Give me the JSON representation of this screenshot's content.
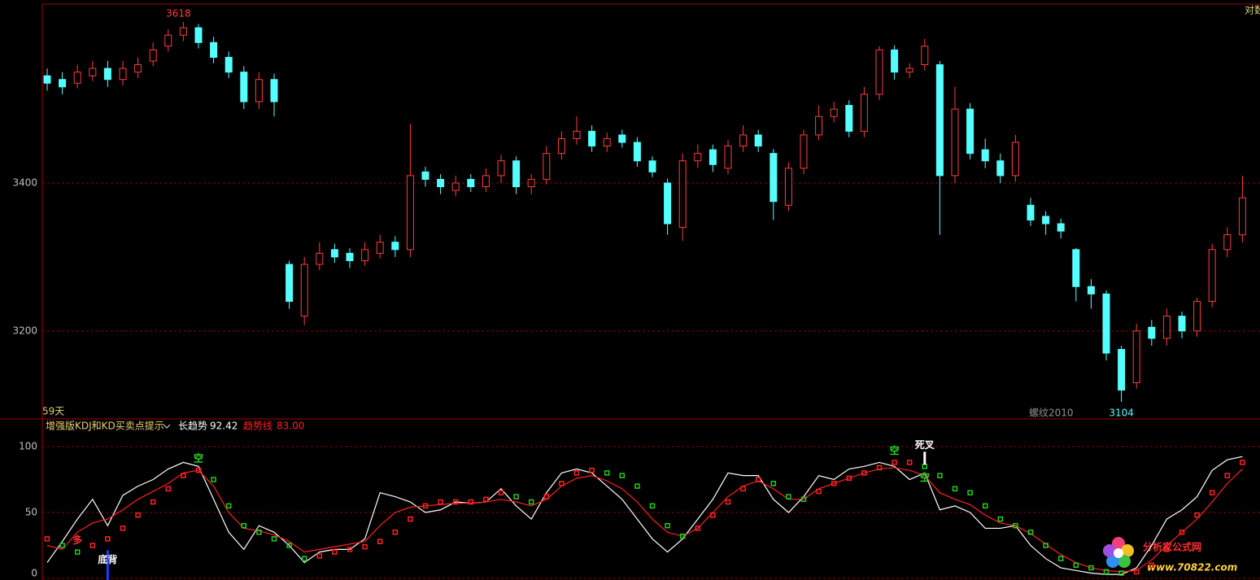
{
  "chart_data": [
    {
      "type": "candlestick",
      "symbol": "螺纹2010",
      "period_label": "59天",
      "scale_label": "对数",
      "open": [
        3545,
        3540,
        3535,
        3545,
        3555,
        3540,
        3550,
        3565,
        3585,
        3600,
        3610,
        3590,
        3570,
        3550,
        3510,
        3540,
        3290,
        3220,
        3290,
        3310,
        3305,
        3295,
        3305,
        3320,
        3310,
        3415,
        3405,
        3390,
        3405,
        3395,
        3410,
        3430,
        3395,
        3405,
        3440,
        3460,
        3470,
        3450,
        3465,
        3455,
        3430,
        3400,
        3340,
        3430,
        3445,
        3420,
        3450,
        3465,
        3440,
        3370,
        3420,
        3465,
        3490,
        3505,
        3470,
        3520,
        3580,
        3550,
        3560,
        3560,
        3410,
        3500,
        3445,
        3430,
        3410,
        3370,
        3355,
        3345,
        3310,
        3260,
        3250,
        3175,
        3130,
        3205,
        3190,
        3220,
        3200,
        3240,
        3310,
        3330
      ],
      "high": [
        3555,
        3550,
        3560,
        3565,
        3565,
        3565,
        3570,
        3590,
        3608,
        3618,
        3615,
        3598,
        3578,
        3558,
        3550,
        3548,
        3295,
        3300,
        3320,
        3318,
        3312,
        3320,
        3330,
        3328,
        3480,
        3422,
        3412,
        3410,
        3412,
        3420,
        3438,
        3436,
        3412,
        3450,
        3470,
        3490,
        3478,
        3468,
        3472,
        3462,
        3436,
        3406,
        3440,
        3452,
        3452,
        3458,
        3478,
        3472,
        3446,
        3428,
        3472,
        3505,
        3510,
        3512,
        3530,
        3585,
        3586,
        3562,
        3595,
        3565,
        3530,
        3508,
        3460,
        3440,
        3465,
        3380,
        3362,
        3352,
        3312,
        3270,
        3255,
        3180,
        3210,
        3215,
        3230,
        3226,
        3245,
        3318,
        3340,
        3410
      ],
      "low": [
        3525,
        3520,
        3528,
        3538,
        3530,
        3532,
        3542,
        3558,
        3578,
        3592,
        3582,
        3562,
        3542,
        3500,
        3500,
        3490,
        3230,
        3208,
        3282,
        3292,
        3285,
        3288,
        3298,
        3300,
        3300,
        3395,
        3385,
        3382,
        3388,
        3388,
        3400,
        3385,
        3385,
        3398,
        3432,
        3452,
        3442,
        3442,
        3448,
        3422,
        3408,
        3330,
        3322,
        3420,
        3415,
        3412,
        3442,
        3442,
        3350,
        3362,
        3412,
        3458,
        3482,
        3462,
        3462,
        3512,
        3540,
        3542,
        3552,
        3330,
        3400,
        3432,
        3420,
        3400,
        3402,
        3342,
        3330,
        3325,
        3240,
        3230,
        3160,
        3104,
        3122,
        3180,
        3180,
        3190,
        3192,
        3232,
        3300,
        3320
      ],
      "close": [
        3535,
        3530,
        3550,
        3555,
        3540,
        3555,
        3560,
        3580,
        3600,
        3610,
        3590,
        3570,
        3550,
        3510,
        3540,
        3510,
        3240,
        3290,
        3305,
        3300,
        3295,
        3310,
        3320,
        3310,
        3410,
        3405,
        3395,
        3400,
        3395,
        3410,
        3430,
        3395,
        3405,
        3440,
        3460,
        3470,
        3450,
        3460,
        3455,
        3430,
        3415,
        3345,
        3430,
        3440,
        3425,
        3450,
        3465,
        3450,
        3375,
        3420,
        3465,
        3490,
        3500,
        3470,
        3520,
        3580,
        3550,
        3555,
        3585,
        3410,
        3500,
        3440,
        3430,
        3410,
        3455,
        3350,
        3345,
        3335,
        3260,
        3250,
        3170,
        3120,
        3200,
        3190,
        3220,
        3200,
        3240,
        3310,
        3330,
        3380
      ],
      "up_color": "#ff3c3c",
      "down_color": "#54ffff",
      "ylim": [
        3081,
        3642
      ],
      "yticks": [
        3200,
        3400
      ],
      "grid": true
    },
    {
      "type": "line",
      "title": "增强版KDJ和KD买卖点提示",
      "series": [
        {
          "name": "长趋势",
          "color": "#ffffff",
          "last_value_label": "92.42",
          "values": [
            12,
            28,
            45,
            60,
            40,
            63,
            70,
            75,
            83,
            88,
            85,
            60,
            35,
            22,
            40,
            35,
            25,
            12,
            20,
            22,
            22,
            30,
            65,
            62,
            58,
            50,
            52,
            58,
            57,
            58,
            68,
            55,
            45,
            65,
            80,
            83,
            80,
            70,
            60,
            45,
            30,
            20,
            30,
            45,
            60,
            80,
            78,
            78,
            60,
            50,
            62,
            78,
            75,
            83,
            85,
            88,
            85,
            75,
            80,
            52,
            55,
            50,
            38,
            38,
            40,
            25,
            15,
            8,
            6,
            4,
            3,
            3,
            8,
            25,
            45,
            52,
            62,
            82,
            90,
            92.42
          ]
        },
        {
          "name": "趋势线",
          "color": "#ff2020",
          "last_value_label": "83.00",
          "values": [
            25,
            22,
            35,
            42,
            45,
            52,
            60,
            66,
            72,
            80,
            82,
            70,
            50,
            38,
            36,
            33,
            28,
            20,
            22,
            24,
            26,
            28,
            40,
            50,
            54,
            55,
            56,
            57,
            57,
            58,
            60,
            58,
            55,
            60,
            70,
            76,
            78,
            74,
            68,
            58,
            45,
            35,
            32,
            38,
            50,
            62,
            70,
            74,
            68,
            60,
            60,
            68,
            72,
            76,
            80,
            83,
            84,
            82,
            78,
            65,
            60,
            56,
            48,
            42,
            40,
            34,
            26,
            18,
            12,
            8,
            6,
            5,
            6,
            14,
            25,
            35,
            45,
            58,
            72,
            83
          ]
        },
        {
          "style": "step",
          "up_color": "#ff2020",
          "down_color": "#22cc22",
          "values": [
            30,
            25,
            20,
            25,
            30,
            38,
            48,
            58,
            68,
            78,
            82,
            75,
            55,
            40,
            35,
            30,
            25,
            15,
            17,
            20,
            22,
            24,
            28,
            35,
            45,
            55,
            58,
            58,
            58,
            60,
            65,
            62,
            58,
            62,
            72,
            80,
            82,
            80,
            78,
            70,
            55,
            40,
            32,
            38,
            48,
            58,
            68,
            75,
            72,
            62,
            60,
            66,
            72,
            76,
            80,
            84,
            88,
            88,
            85,
            78,
            68,
            65,
            55,
            45,
            40,
            35,
            25,
            15,
            10,
            8,
            5,
            4,
            5,
            10,
            22,
            35,
            48,
            65,
            78,
            88
          ]
        }
      ],
      "signals": [
        {
          "text": "多",
          "index": 2,
          "side": "above",
          "color": "#ff3030"
        },
        {
          "text": "底背",
          "index": 4,
          "side": "below",
          "color": "#ffffff",
          "marker_color": "#1a3cff"
        },
        {
          "text": "空",
          "index": 10,
          "side": "above",
          "color": "#22dd22"
        },
        {
          "text": "空",
          "index": 56,
          "side": "above",
          "color": "#22dd22"
        },
        {
          "text": "死叉",
          "index": 58,
          "side": "above",
          "color": "#ffffff",
          "marker_color": "#ffffff"
        },
        {
          "text": "空",
          "index": 58,
          "side": "below",
          "color": "#22dd22"
        }
      ],
      "ylim": [
        0,
        100
      ],
      "yticks": [
        0,
        50,
        100
      ],
      "grid": true
    }
  ],
  "watermark": {
    "title": "分析家公式网",
    "url": "www.70822.com"
  }
}
